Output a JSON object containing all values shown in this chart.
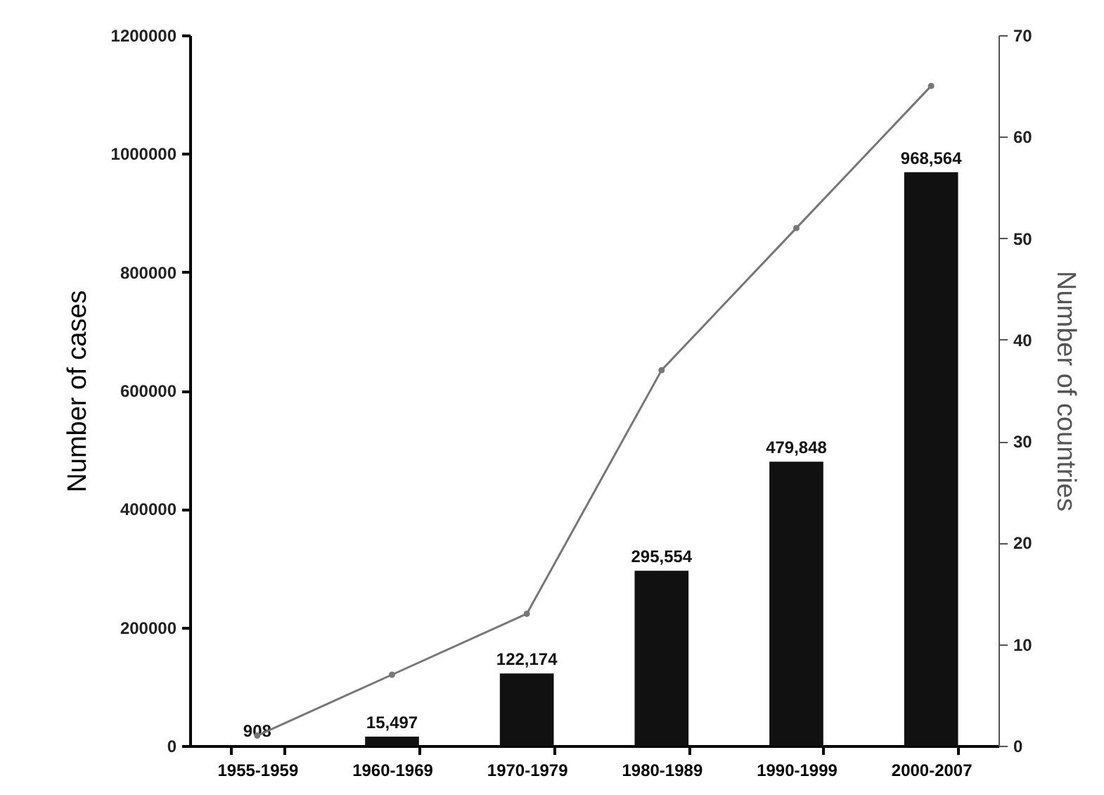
{
  "chart_data": {
    "type": "bar",
    "ylabel": "Number of cases",
    "y2label": "Number of countries",
    "categories": [
      "1955-1959",
      "1960-1969",
      "1970-1979",
      "1980-1989",
      "1990-1999",
      "2000-2007"
    ],
    "series": [
      {
        "color": "#111111",
        "values": [
          908,
          15497,
          122174,
          295554,
          479848,
          968564
        ],
        "value_labels": [
          "908",
          "15,497",
          "122,174",
          "295,554",
          "479,848",
          "968,564"
        ]
      },
      {
        "type": "line",
        "axis": "y2",
        "color": "#777777",
        "marker": "circle",
        "values": [
          1,
          7,
          13,
          37,
          51,
          65
        ]
      }
    ],
    "ylim": [
      0,
      1200000
    ],
    "yticks": [
      0,
      200000,
      400000,
      600000,
      800000,
      1000000,
      1200000
    ],
    "y2lim": [
      0,
      70
    ],
    "y2ticks": [
      0,
      10,
      20,
      30,
      40,
      50,
      60,
      70
    ]
  }
}
